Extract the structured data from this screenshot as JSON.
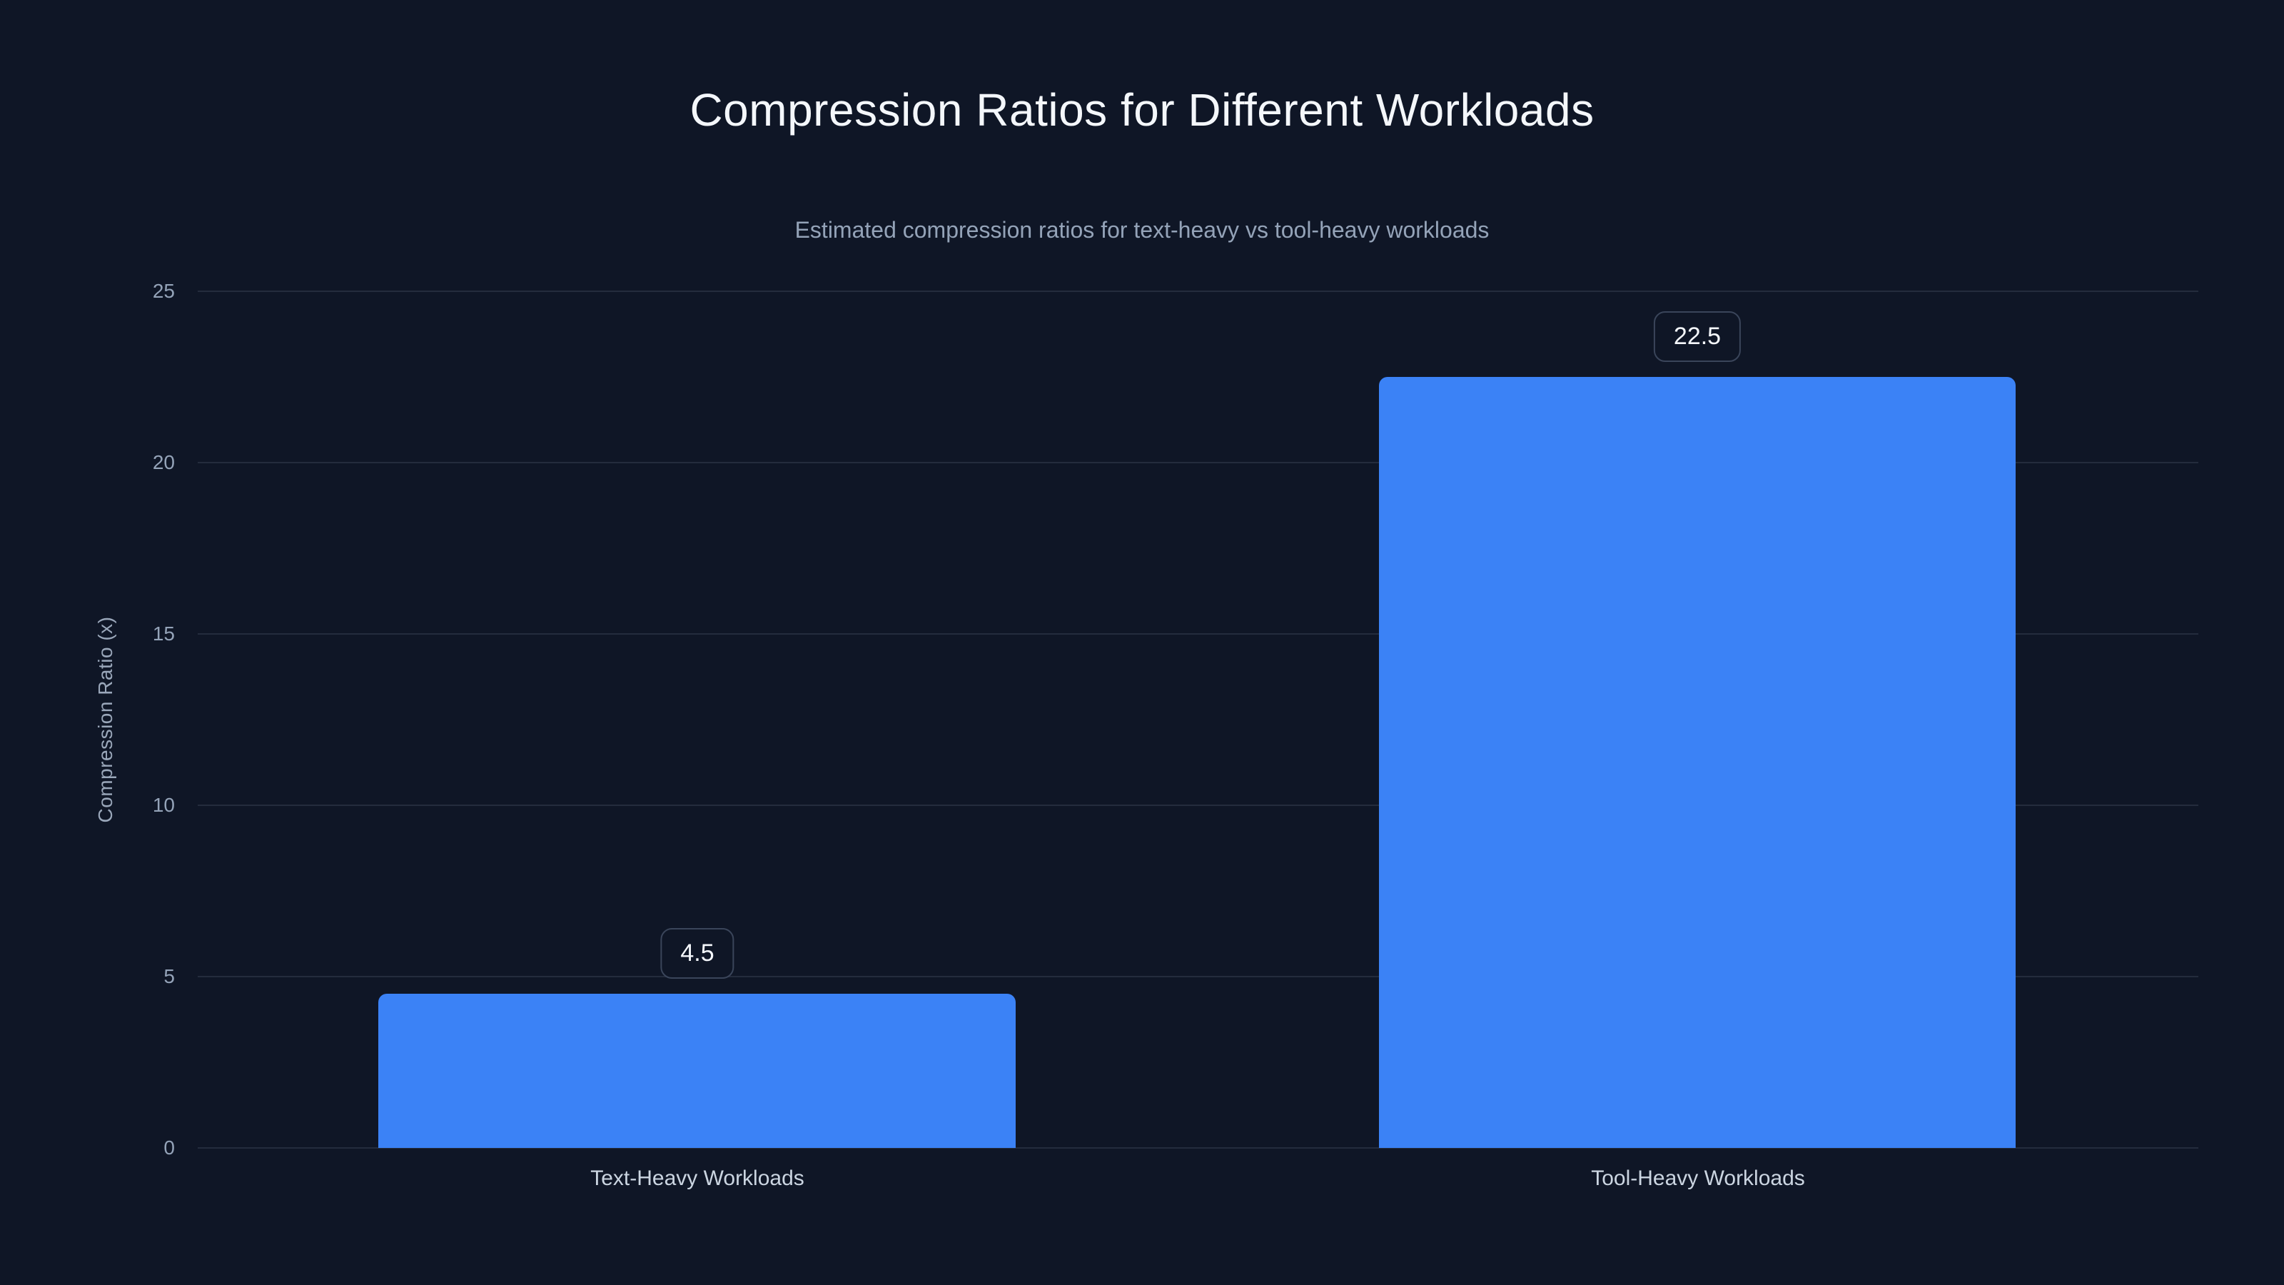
{
  "chart_data": {
    "type": "bar",
    "title": "Compression Ratios for Different Workloads",
    "subtitle": "Estimated compression ratios for text-heavy vs tool-heavy workloads",
    "categories": [
      "Text-Heavy Workloads",
      "Tool-Heavy Workloads"
    ],
    "values": [
      4.5,
      22.5
    ],
    "value_labels": [
      "4.5",
      "22.5"
    ],
    "xlabel": "",
    "ylabel": "Compression Ratio (x)",
    "ylim": [
      0,
      25
    ],
    "yticks": [
      0,
      5,
      10,
      15,
      20,
      25
    ],
    "ytick_labels": [
      "0",
      "5",
      "10",
      "15",
      "20",
      "25"
    ],
    "grid": "horizontal",
    "legend": "none",
    "bar_color": "#3b82f6",
    "background_color": "#0f1626",
    "gridline_color": "rgba(148,163,184,0.16)",
    "title_color": "#f4f7fb",
    "subtitle_color": "#94a3b8",
    "tick_color": "#94a3b8",
    "category_label_color": "#cbd5e1",
    "value_badge_border_color": "#3a455a",
    "value_badge_text_color": "#f4f7fb"
  }
}
